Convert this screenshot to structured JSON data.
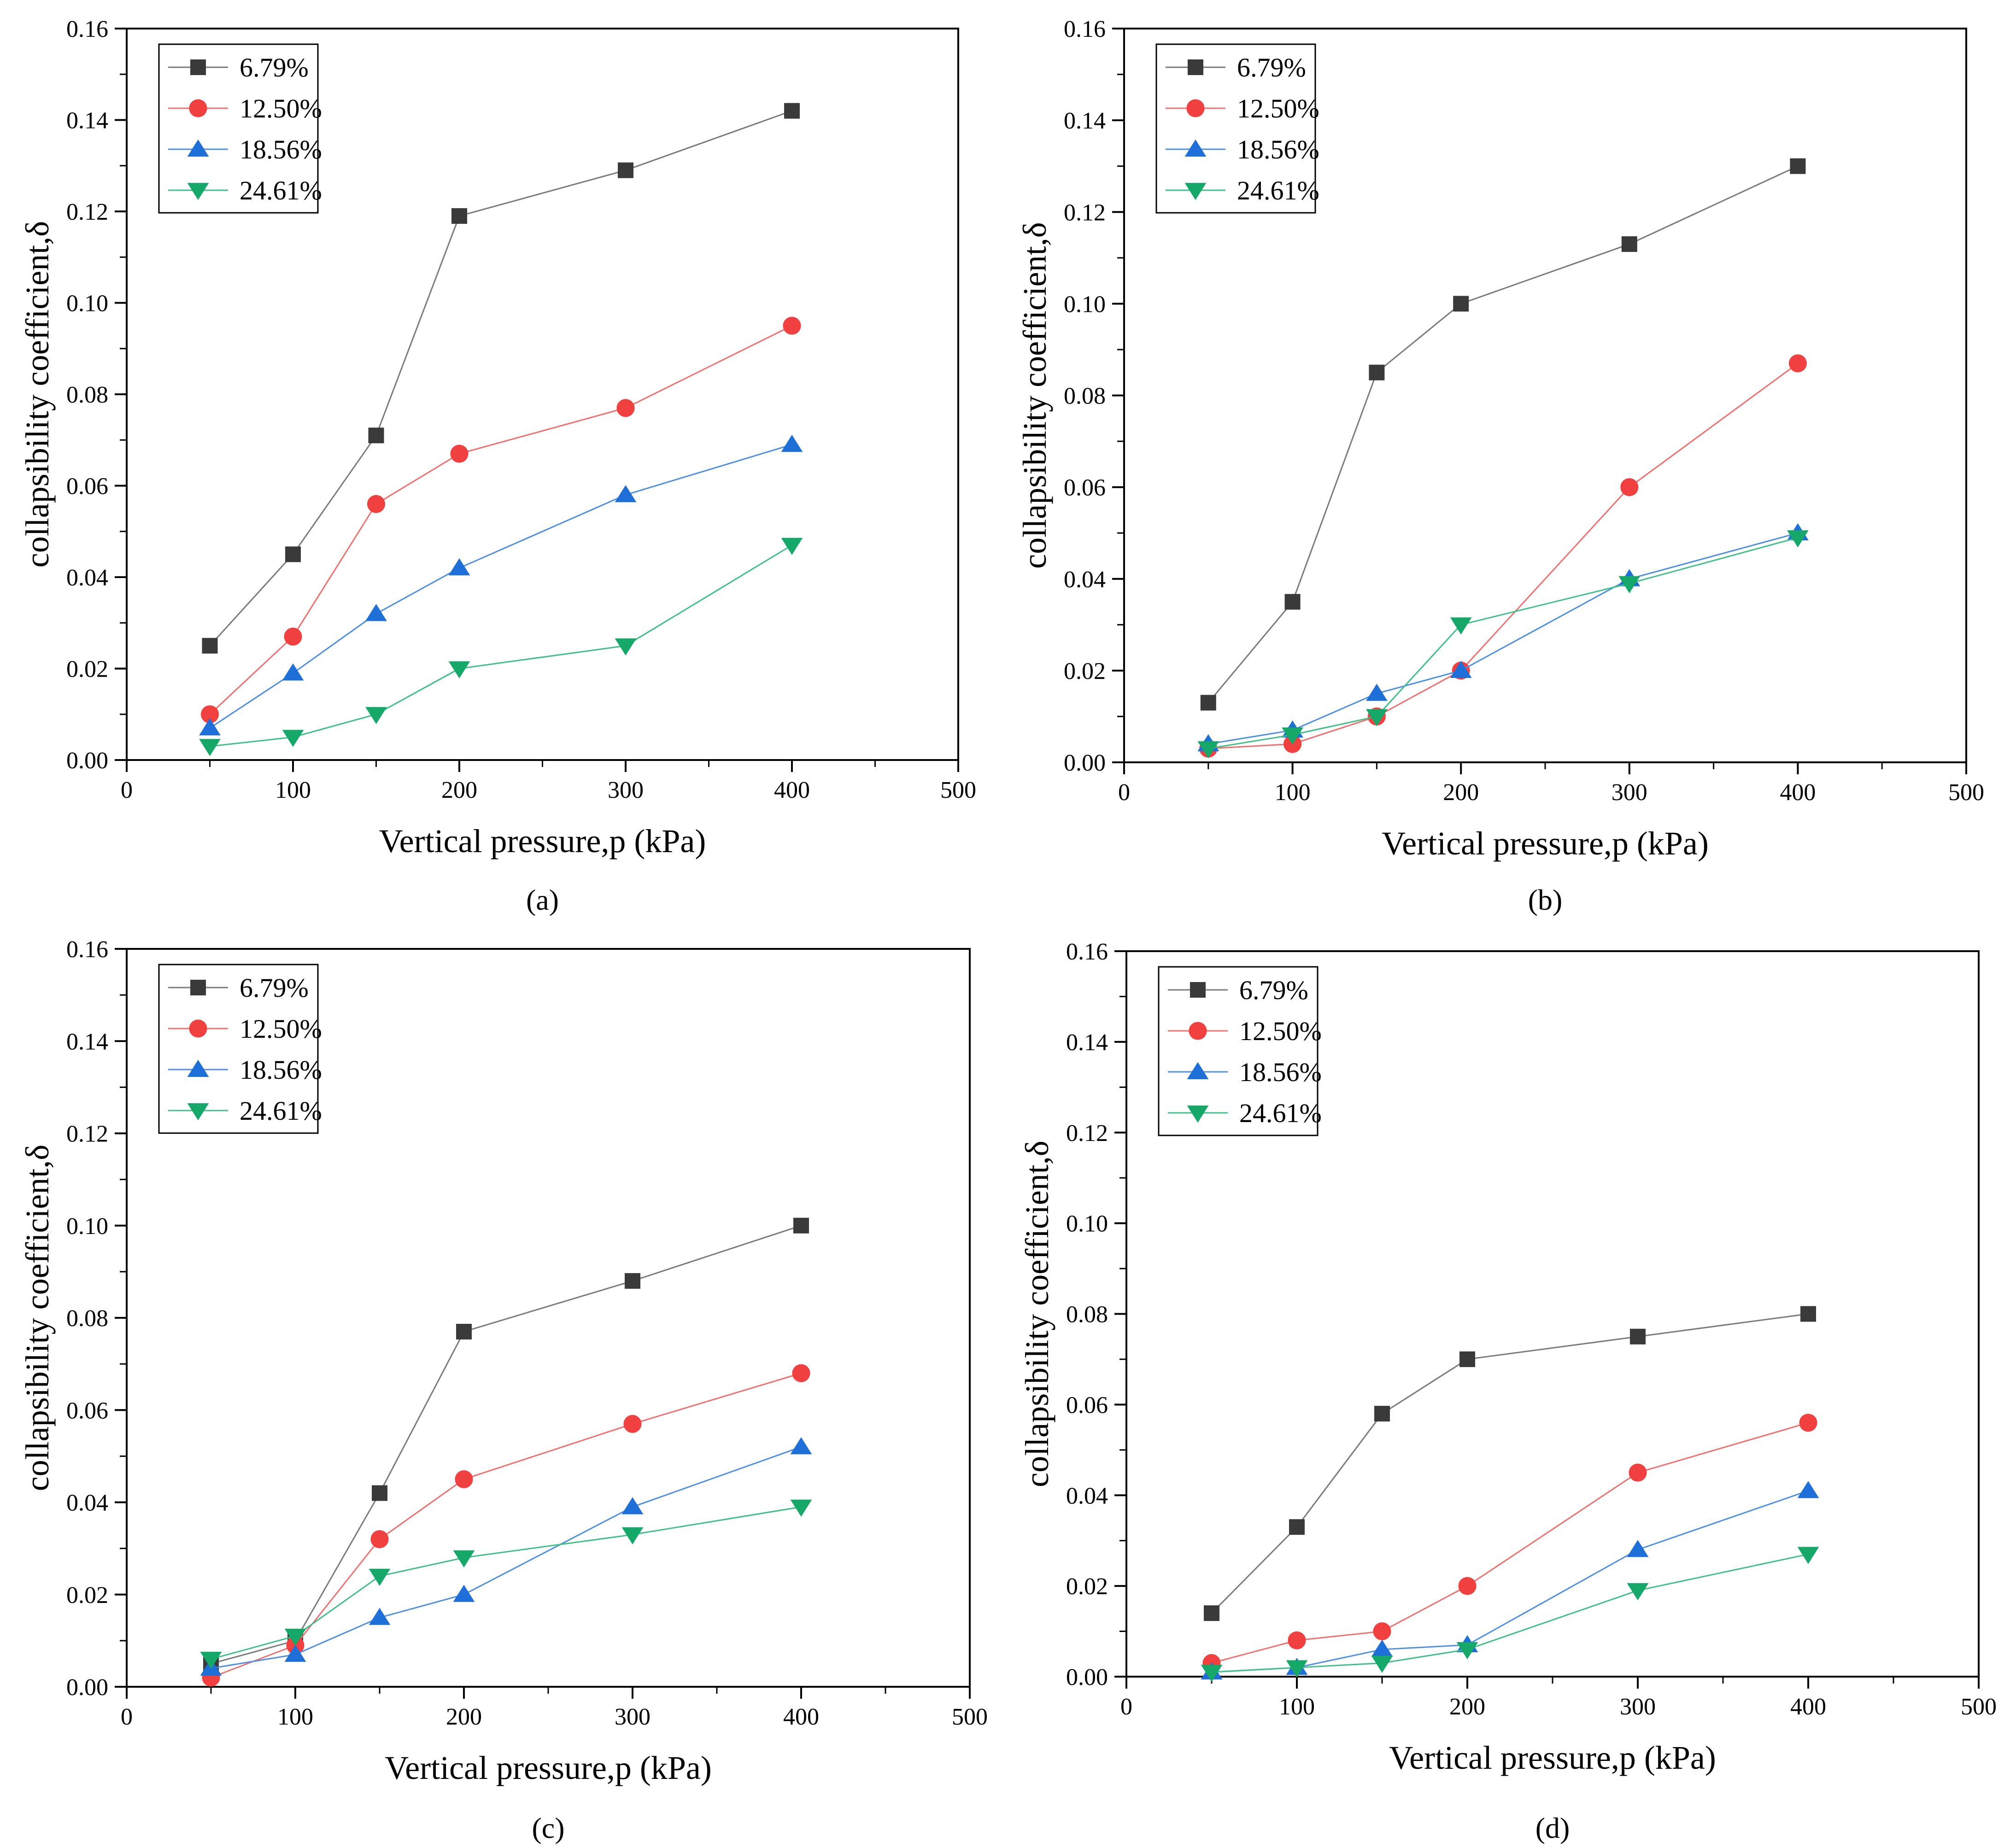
{
  "figure": {
    "panel_labels": [
      "(a)",
      "(b)",
      "(c)",
      "(d)"
    ]
  },
  "series_styles": [
    {
      "name": "6.79%",
      "color": "#3a3a3a",
      "line_color": "#7a7a7a",
      "marker": "square"
    },
    {
      "name": "12.50%",
      "color": "#f04040",
      "line_color": "#f07070",
      "marker": "circle"
    },
    {
      "name": "18.56%",
      "color": "#1f6fd8",
      "line_color": "#4f8fe0",
      "marker": "triangle-up"
    },
    {
      "name": "24.61%",
      "color": "#16a868",
      "line_color": "#40c088",
      "marker": "triangle-down"
    }
  ],
  "chart_data": [
    {
      "type": "line",
      "panel": "(a)",
      "xlabel": "Vertical pressure,p (kPa)",
      "ylabel": "collapsibility coefficient,δ",
      "xlim": [
        0,
        500
      ],
      "ylim": [
        0,
        0.16
      ],
      "xticks": [
        "0",
        "100",
        "200",
        "300",
        "400",
        "500"
      ],
      "yticks": [
        "0.00",
        "0.02",
        "0.04",
        "0.06",
        "0.08",
        "0.10",
        "0.12",
        "0.14",
        "0.16"
      ],
      "x": [
        50,
        100,
        150,
        200,
        300,
        400
      ],
      "legend": "top-left",
      "series": [
        {
          "name": "6.79%",
          "values": [
            0.025,
            0.045,
            0.071,
            0.119,
            0.129,
            0.142
          ]
        },
        {
          "name": "12.50%",
          "values": [
            0.01,
            0.027,
            0.056,
            0.067,
            0.077,
            0.095
          ]
        },
        {
          "name": "18.56%",
          "values": [
            0.007,
            0.019,
            0.032,
            0.042,
            0.058,
            0.069
          ]
        },
        {
          "name": "24.61%",
          "values": [
            0.003,
            0.005,
            0.01,
            0.02,
            0.025,
            0.047
          ]
        }
      ]
    },
    {
      "type": "line",
      "panel": "(b)",
      "xlabel": "Vertical pressure,p (kPa)",
      "ylabel": "collapsibility coefficient,δ",
      "xlim": [
        0,
        500
      ],
      "ylim": [
        0,
        0.16
      ],
      "xticks": [
        "0",
        "100",
        "200",
        "300",
        "400",
        "500"
      ],
      "yticks": [
        "0.00",
        "0.02",
        "0.04",
        "0.06",
        "0.08",
        "0.10",
        "0.12",
        "0.14",
        "0.16"
      ],
      "x": [
        50,
        100,
        150,
        200,
        300,
        400
      ],
      "legend": "top-left",
      "series": [
        {
          "name": "6.79%",
          "values": [
            0.013,
            0.035,
            0.085,
            0.1,
            0.113,
            0.13
          ]
        },
        {
          "name": "12.50%",
          "values": [
            0.003,
            0.004,
            0.01,
            0.02,
            0.06,
            0.087
          ]
        },
        {
          "name": "18.56%",
          "values": [
            0.004,
            0.007,
            0.015,
            0.02,
            0.04,
            0.05
          ]
        },
        {
          "name": "24.61%",
          "values": [
            0.003,
            0.006,
            0.01,
            0.03,
            0.039,
            0.049
          ]
        }
      ]
    },
    {
      "type": "line",
      "panel": "(c)",
      "xlabel": "Vertical pressure,p (kPa)",
      "ylabel": "collapsibility coefficient,δ",
      "xlim": [
        0,
        500
      ],
      "ylim": [
        0,
        0.16
      ],
      "xticks": [
        "0",
        "100",
        "200",
        "300",
        "400",
        "500"
      ],
      "yticks": [
        "0.00",
        "0.02",
        "0.04",
        "0.06",
        "0.08",
        "0.10",
        "0.12",
        "0.14",
        "0.16"
      ],
      "x": [
        50,
        100,
        150,
        200,
        300,
        400
      ],
      "legend": "top-left",
      "series": [
        {
          "name": "6.79%",
          "values": [
            0.005,
            0.01,
            0.042,
            0.077,
            0.088,
            0.1
          ]
        },
        {
          "name": "12.50%",
          "values": [
            0.002,
            0.009,
            0.032,
            0.045,
            0.057,
            0.068
          ]
        },
        {
          "name": "18.56%",
          "values": [
            0.004,
            0.007,
            0.015,
            0.02,
            0.039,
            0.052
          ]
        },
        {
          "name": "24.61%",
          "values": [
            0.006,
            0.011,
            0.024,
            0.028,
            0.033,
            0.039
          ]
        }
      ]
    },
    {
      "type": "line",
      "panel": "(d)",
      "xlabel": "Vertical pressure,p (kPa)",
      "ylabel": "collapsibility coefficient,δ",
      "xlim": [
        0,
        500
      ],
      "ylim": [
        0,
        0.16
      ],
      "xticks": [
        "0",
        "100",
        "200",
        "300",
        "400",
        "500"
      ],
      "yticks": [
        "0.00",
        "0.02",
        "0.04",
        "0.06",
        "0.08",
        "0.10",
        "0.12",
        "0.14",
        "0.16"
      ],
      "x": [
        50,
        100,
        150,
        200,
        300,
        400
      ],
      "legend": "top-left",
      "series": [
        {
          "name": "6.79%",
          "values": [
            0.014,
            0.033,
            0.058,
            0.07,
            0.075,
            0.08
          ]
        },
        {
          "name": "12.50%",
          "values": [
            0.003,
            0.008,
            0.01,
            0.02,
            0.045,
            0.056
          ]
        },
        {
          "name": "18.56%",
          "values": [
            0.001,
            0.002,
            0.006,
            0.007,
            0.028,
            0.041
          ]
        },
        {
          "name": "24.61%",
          "values": [
            0.001,
            0.002,
            0.003,
            0.006,
            0.019,
            0.027
          ]
        }
      ]
    }
  ]
}
